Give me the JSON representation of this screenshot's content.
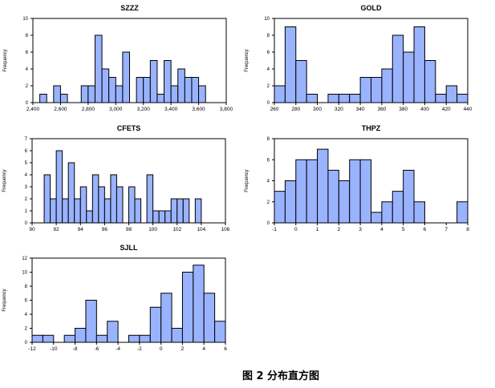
{
  "figure": {
    "caption": "图 2 分布直方图",
    "bar_color": "#99b3ff",
    "edge_color": "#000000"
  },
  "chart_data": [
    {
      "type": "bar",
      "title": "SZZZ",
      "ylabel": "Frequency",
      "xlabel": "",
      "xlim": [
        2400,
        3800
      ],
      "ylim": [
        0,
        10
      ],
      "xticks": [
        2400,
        2600,
        2800,
        3000,
        3200,
        3400,
        3600,
        3800
      ],
      "xtick_labels": [
        "2,400",
        "2,600",
        "2,800",
        "3,000",
        "3,200",
        "3,400",
        "3,600",
        "3,800"
      ],
      "yticks": [
        0,
        2,
        4,
        6,
        8,
        10
      ],
      "bin_width": 50,
      "bins": [
        {
          "start": 2450,
          "count": 1
        },
        {
          "start": 2550,
          "count": 2
        },
        {
          "start": 2600,
          "count": 1
        },
        {
          "start": 2750,
          "count": 2
        },
        {
          "start": 2800,
          "count": 2
        },
        {
          "start": 2850,
          "count": 8
        },
        {
          "start": 2900,
          "count": 4
        },
        {
          "start": 2950,
          "count": 3
        },
        {
          "start": 3000,
          "count": 2
        },
        {
          "start": 3050,
          "count": 6
        },
        {
          "start": 3150,
          "count": 3
        },
        {
          "start": 3200,
          "count": 3
        },
        {
          "start": 3250,
          "count": 5
        },
        {
          "start": 3300,
          "count": 1
        },
        {
          "start": 3350,
          "count": 5
        },
        {
          "start": 3400,
          "count": 2
        },
        {
          "start": 3450,
          "count": 4
        },
        {
          "start": 3500,
          "count": 3
        },
        {
          "start": 3550,
          "count": 3
        },
        {
          "start": 3600,
          "count": 2
        }
      ]
    },
    {
      "type": "bar",
      "title": "GOLD",
      "ylabel": "Frequency",
      "xlabel": "",
      "xlim": [
        260,
        440
      ],
      "ylim": [
        0,
        10
      ],
      "xticks": [
        260,
        280,
        300,
        320,
        340,
        360,
        380,
        400,
        420,
        440
      ],
      "xtick_labels": [
        "260",
        "280",
        "300",
        "320",
        "340",
        "360",
        "380",
        "400",
        "420",
        "440"
      ],
      "yticks": [
        0,
        2,
        4,
        6,
        8,
        10
      ],
      "bin_width": 10,
      "bins": [
        {
          "start": 260,
          "count": 2
        },
        {
          "start": 270,
          "count": 9
        },
        {
          "start": 280,
          "count": 5
        },
        {
          "start": 290,
          "count": 1
        },
        {
          "start": 310,
          "count": 1
        },
        {
          "start": 320,
          "count": 1
        },
        {
          "start": 330,
          "count": 1
        },
        {
          "start": 340,
          "count": 3
        },
        {
          "start": 350,
          "count": 3
        },
        {
          "start": 360,
          "count": 4
        },
        {
          "start": 370,
          "count": 8
        },
        {
          "start": 380,
          "count": 6
        },
        {
          "start": 390,
          "count": 9
        },
        {
          "start": 400,
          "count": 5
        },
        {
          "start": 410,
          "count": 1
        },
        {
          "start": 420,
          "count": 2
        },
        {
          "start": 430,
          "count": 1
        }
      ]
    },
    {
      "type": "bar",
      "title": "CFETS",
      "ylabel": "Frequency",
      "xlabel": "",
      "xlim": [
        90,
        106
      ],
      "ylim": [
        0,
        7
      ],
      "xticks": [
        90,
        92,
        94,
        96,
        98,
        100,
        102,
        104,
        106
      ],
      "xtick_labels": [
        "90",
        "92",
        "94",
        "96",
        "98",
        "100",
        "102",
        "104",
        "106"
      ],
      "yticks": [
        0,
        1,
        2,
        3,
        4,
        5,
        6,
        7
      ],
      "bin_width": 0.5,
      "bins": [
        {
          "start": 91.0,
          "count": 4
        },
        {
          "start": 91.5,
          "count": 2
        },
        {
          "start": 92.0,
          "count": 6
        },
        {
          "start": 92.5,
          "count": 2
        },
        {
          "start": 93.0,
          "count": 5
        },
        {
          "start": 93.5,
          "count": 2
        },
        {
          "start": 94.0,
          "count": 3
        },
        {
          "start": 94.5,
          "count": 1
        },
        {
          "start": 95.0,
          "count": 4
        },
        {
          "start": 95.5,
          "count": 3
        },
        {
          "start": 96.0,
          "count": 2
        },
        {
          "start": 96.5,
          "count": 4
        },
        {
          "start": 97.0,
          "count": 3
        },
        {
          "start": 98.0,
          "count": 3
        },
        {
          "start": 98.5,
          "count": 2
        },
        {
          "start": 99.5,
          "count": 4
        },
        {
          "start": 100.0,
          "count": 1
        },
        {
          "start": 100.5,
          "count": 1
        },
        {
          "start": 101.0,
          "count": 1
        },
        {
          "start": 101.5,
          "count": 2
        },
        {
          "start": 102.0,
          "count": 2
        },
        {
          "start": 102.5,
          "count": 2
        },
        {
          "start": 103.5,
          "count": 2
        }
      ]
    },
    {
      "type": "bar",
      "title": "THPZ",
      "ylabel": "Frequency",
      "xlabel": "",
      "xlim": [
        -1,
        8
      ],
      "ylim": [
        0,
        8
      ],
      "xticks": [
        -1,
        0,
        1,
        2,
        3,
        4,
        5,
        6,
        7,
        8
      ],
      "xtick_labels": [
        "-1",
        "0",
        "1",
        "2",
        "3",
        "4",
        "5",
        "6",
        "7",
        "8"
      ],
      "yticks": [
        0,
        2,
        4,
        6,
        8
      ],
      "bin_width": 0.5,
      "bins": [
        {
          "start": -1.0,
          "count": 3
        },
        {
          "start": -0.5,
          "count": 4
        },
        {
          "start": 0.0,
          "count": 6
        },
        {
          "start": 0.5,
          "count": 6
        },
        {
          "start": 1.0,
          "count": 7
        },
        {
          "start": 1.5,
          "count": 5
        },
        {
          "start": 2.0,
          "count": 4
        },
        {
          "start": 2.5,
          "count": 6
        },
        {
          "start": 3.0,
          "count": 6
        },
        {
          "start": 3.5,
          "count": 1
        },
        {
          "start": 4.0,
          "count": 2
        },
        {
          "start": 4.5,
          "count": 3
        },
        {
          "start": 5.0,
          "count": 5
        },
        {
          "start": 5.5,
          "count": 2
        },
        {
          "start": 7.5,
          "count": 2
        }
      ]
    },
    {
      "type": "bar",
      "title": "SJLL",
      "ylabel": "Frequency",
      "xlabel": "",
      "xlim": [
        -12,
        6
      ],
      "ylim": [
        0,
        12
      ],
      "xticks": [
        -12,
        -10,
        -8,
        -6,
        -4,
        -2,
        0,
        2,
        4,
        6
      ],
      "xtick_labels": [
        "-12",
        "-10",
        "-8",
        "-6",
        "-4",
        "-2",
        "0",
        "2",
        "4",
        "6"
      ],
      "yticks": [
        0,
        2,
        4,
        6,
        8,
        10,
        12
      ],
      "ytick_labels": [
        "0",
        "2",
        "4",
        "6",
        "8",
        "10",
        "12"
      ],
      "bin_width": 1,
      "bins": [
        {
          "start": -12,
          "count": 1
        },
        {
          "start": -11,
          "count": 1
        },
        {
          "start": -9,
          "count": 1
        },
        {
          "start": -8,
          "count": 2
        },
        {
          "start": -7,
          "count": 6
        },
        {
          "start": -6,
          "count": 1
        },
        {
          "start": -5,
          "count": 3
        },
        {
          "start": -3,
          "count": 1
        },
        {
          "start": -2,
          "count": 1
        },
        {
          "start": -1,
          "count": 5
        },
        {
          "start": 0,
          "count": 7
        },
        {
          "start": 1,
          "count": 2
        },
        {
          "start": 2,
          "count": 10
        },
        {
          "start": 3,
          "count": 11
        },
        {
          "start": 4,
          "count": 7
        },
        {
          "start": 5,
          "count": 3
        }
      ]
    }
  ]
}
